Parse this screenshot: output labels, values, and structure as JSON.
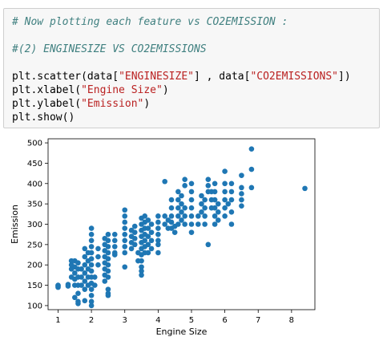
{
  "code_cell": {
    "line1": "# Now plotting each feature vs CO2EMISSION :",
    "line2": "#(2) ENGINESIZE VS CO2EMISSIONS",
    "line3": {
      "a": "plt.scatter(data[",
      "s1": "\"ENGINESIZE\"",
      "b": "] , data[",
      "s2": "\"CO2EMISSIONS\"",
      "c": "])"
    },
    "line4": {
      "a": "plt.xlabel(",
      "s": "\"Engine Size\"",
      "c": ")"
    },
    "line5": {
      "a": "plt.ylabel(",
      "s": "\"Emission\"",
      "c": ")"
    },
    "line6": "plt.show()"
  },
  "chart_data": {
    "type": "scatter",
    "xlabel": "Engine Size",
    "ylabel": "Emission",
    "xlim": [
      0.7,
      8.7
    ],
    "ylim": [
      90,
      510
    ],
    "xticks": [
      "1",
      "2",
      "3",
      "4",
      "5",
      "6",
      "7",
      "8"
    ],
    "yticks": [
      "100",
      "150",
      "200",
      "250",
      "300",
      "350",
      "400",
      "450",
      "500"
    ],
    "marker_color": "#1f77b4",
    "points": [
      [
        1.0,
        148
      ],
      [
        1.0,
        150
      ],
      [
        1.0,
        145
      ],
      [
        1.3,
        152
      ],
      [
        1.3,
        148
      ],
      [
        1.4,
        170
      ],
      [
        1.4,
        190
      ],
      [
        1.4,
        200
      ],
      [
        1.4,
        210
      ],
      [
        1.5,
        150
      ],
      [
        1.5,
        165
      ],
      [
        1.5,
        180
      ],
      [
        1.5,
        195
      ],
      [
        1.5,
        210
      ],
      [
        1.5,
        120
      ],
      [
        1.6,
        110
      ],
      [
        1.6,
        130
      ],
      [
        1.6,
        150
      ],
      [
        1.6,
        170
      ],
      [
        1.6,
        190
      ],
      [
        1.6,
        205
      ],
      [
        1.7,
        150
      ],
      [
        1.7,
        170
      ],
      [
        1.7,
        190
      ],
      [
        1.8,
        140
      ],
      [
        1.8,
        160
      ],
      [
        1.8,
        180
      ],
      [
        1.8,
        200
      ],
      [
        1.8,
        220
      ],
      [
        1.8,
        240
      ],
      [
        1.8,
        112
      ],
      [
        1.9,
        150
      ],
      [
        1.9,
        170
      ],
      [
        1.9,
        190
      ],
      [
        1.9,
        210
      ],
      [
        1.9,
        230
      ],
      [
        2.0,
        110
      ],
      [
        2.0,
        125
      ],
      [
        2.0,
        140
      ],
      [
        2.0,
        155
      ],
      [
        2.0,
        170
      ],
      [
        2.0,
        185
      ],
      [
        2.0,
        200
      ],
      [
        2.0,
        215
      ],
      [
        2.0,
        230
      ],
      [
        2.0,
        245
      ],
      [
        2.0,
        260
      ],
      [
        2.0,
        275
      ],
      [
        2.0,
        290
      ],
      [
        2.1,
        150
      ],
      [
        2.1,
        170
      ],
      [
        2.2,
        200
      ],
      [
        2.2,
        220
      ],
      [
        2.2,
        240
      ],
      [
        2.4,
        160
      ],
      [
        2.4,
        175
      ],
      [
        2.4,
        190
      ],
      [
        2.4,
        205
      ],
      [
        2.4,
        220
      ],
      [
        2.4,
        235
      ],
      [
        2.4,
        250
      ],
      [
        2.4,
        265
      ],
      [
        2.5,
        170
      ],
      [
        2.5,
        185
      ],
      [
        2.5,
        200
      ],
      [
        2.5,
        215
      ],
      [
        2.5,
        230
      ],
      [
        2.5,
        245
      ],
      [
        2.5,
        260
      ],
      [
        2.5,
        140
      ],
      [
        2.5,
        130
      ],
      [
        2.5,
        275
      ],
      [
        2.7,
        230
      ],
      [
        2.7,
        245
      ],
      [
        2.7,
        260
      ],
      [
        2.7,
        275
      ],
      [
        2.7,
        225
      ],
      [
        3.0,
        230
      ],
      [
        3.0,
        245
      ],
      [
        3.0,
        260
      ],
      [
        3.0,
        275
      ],
      [
        3.0,
        290
      ],
      [
        3.0,
        305
      ],
      [
        3.0,
        320
      ],
      [
        3.0,
        335
      ],
      [
        3.2,
        240
      ],
      [
        3.2,
        255
      ],
      [
        3.2,
        270
      ],
      [
        3.2,
        285
      ],
      [
        3.3,
        250
      ],
      [
        3.3,
        265
      ],
      [
        3.3,
        280
      ],
      [
        3.3,
        295
      ],
      [
        3.4,
        210
      ],
      [
        3.4,
        230
      ],
      [
        3.5,
        210
      ],
      [
        3.5,
        225
      ],
      [
        3.5,
        240
      ],
      [
        3.5,
        255
      ],
      [
        3.5,
        270
      ],
      [
        3.5,
        285
      ],
      [
        3.5,
        300
      ],
      [
        3.5,
        315
      ],
      [
        3.5,
        175
      ],
      [
        3.5,
        185
      ],
      [
        3.5,
        195
      ],
      [
        3.6,
        230
      ],
      [
        3.6,
        245
      ],
      [
        3.6,
        260
      ],
      [
        3.6,
        275
      ],
      [
        3.6,
        290
      ],
      [
        3.6,
        305
      ],
      [
        3.6,
        320
      ],
      [
        3.7,
        230
      ],
      [
        3.7,
        250
      ],
      [
        3.7,
        270
      ],
      [
        3.7,
        290
      ],
      [
        3.7,
        310
      ],
      [
        3.8,
        240
      ],
      [
        3.8,
        260
      ],
      [
        3.8,
        280
      ],
      [
        3.8,
        300
      ],
      [
        4.0,
        260
      ],
      [
        4.0,
        275
      ],
      [
        4.0,
        290
      ],
      [
        4.0,
        305
      ],
      [
        4.0,
        320
      ],
      [
        4.0,
        250
      ],
      [
        4.2,
        300
      ],
      [
        4.2,
        320
      ],
      [
        4.2,
        405
      ],
      [
        4.3,
        290
      ],
      [
        4.3,
        310
      ],
      [
        4.4,
        290
      ],
      [
        4.4,
        305
      ],
      [
        4.4,
        320
      ],
      [
        4.4,
        340
      ],
      [
        4.4,
        360
      ],
      [
        4.5,
        280
      ],
      [
        4.5,
        295
      ],
      [
        4.6,
        300
      ],
      [
        4.6,
        320
      ],
      [
        4.6,
        340
      ],
      [
        4.6,
        360
      ],
      [
        4.6,
        380
      ],
      [
        4.7,
        310
      ],
      [
        4.7,
        330
      ],
      [
        4.7,
        350
      ],
      [
        4.7,
        370
      ],
      [
        4.8,
        300
      ],
      [
        4.8,
        320
      ],
      [
        4.8,
        340
      ],
      [
        4.8,
        395
      ],
      [
        4.8,
        410
      ],
      [
        5.0,
        300
      ],
      [
        5.0,
        320
      ],
      [
        5.0,
        340
      ],
      [
        5.0,
        360
      ],
      [
        5.0,
        380
      ],
      [
        5.0,
        400
      ],
      [
        5.0,
        280
      ],
      [
        5.2,
        300
      ],
      [
        5.2,
        320
      ],
      [
        5.3,
        330
      ],
      [
        5.3,
        350
      ],
      [
        5.3,
        370
      ],
      [
        5.4,
        300
      ],
      [
        5.4,
        320
      ],
      [
        5.4,
        340
      ],
      [
        5.4,
        360
      ],
      [
        5.5,
        380
      ],
      [
        5.5,
        395
      ],
      [
        5.5,
        410
      ],
      [
        5.6,
        340
      ],
      [
        5.6,
        360
      ],
      [
        5.6,
        380
      ],
      [
        5.7,
        300
      ],
      [
        5.7,
        320
      ],
      [
        5.7,
        340
      ],
      [
        5.7,
        360
      ],
      [
        5.7,
        380
      ],
      [
        5.7,
        400
      ],
      [
        5.8,
        310
      ],
      [
        5.8,
        330
      ],
      [
        5.8,
        350
      ],
      [
        6.0,
        320
      ],
      [
        6.0,
        340
      ],
      [
        6.0,
        360
      ],
      [
        6.0,
        380
      ],
      [
        6.0,
        400
      ],
      [
        6.0,
        430
      ],
      [
        6.1,
        350
      ],
      [
        6.2,
        300
      ],
      [
        6.2,
        330
      ],
      [
        6.2,
        360
      ],
      [
        6.2,
        380
      ],
      [
        6.2,
        400
      ],
      [
        6.5,
        345
      ],
      [
        6.5,
        360
      ],
      [
        6.5,
        375
      ],
      [
        6.5,
        390
      ],
      [
        6.5,
        420
      ],
      [
        6.8,
        485
      ],
      [
        6.8,
        435
      ],
      [
        6.8,
        390
      ],
      [
        8.4,
        388
      ],
      [
        5.5,
        250
      ],
      [
        4.0,
        230
      ],
      [
        3.0,
        195
      ],
      [
        2.0,
        100
      ],
      [
        1.6,
        105
      ],
      [
        2.5,
        125
      ]
    ]
  }
}
